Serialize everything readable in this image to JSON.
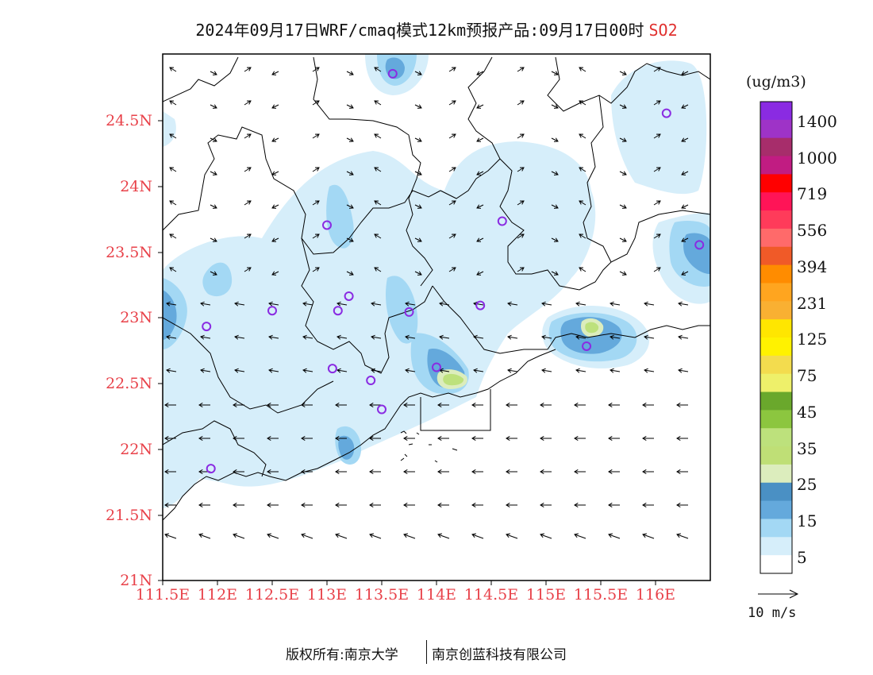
{
  "title": {
    "text": "2024年09月17日WRF/cmaq模式12km预报产品:09月17日00时",
    "pollutant": "SO2"
  },
  "map": {
    "lat_labels": [
      "24.5N",
      "24N",
      "23.5N",
      "23N",
      "22.5N",
      "22N",
      "21.5N",
      "21N"
    ],
    "lon_labels": [
      "111.5E",
      "112E",
      "112.5E",
      "113E",
      "113.5E",
      "114E",
      "114.5E",
      "115E",
      "115.5E",
      "116E"
    ],
    "lon_range": [
      111.5,
      116.5
    ],
    "lat_range": [
      21,
      25
    ],
    "stations": [
      {
        "lon": 113.6,
        "lat": 24.85
      },
      {
        "lon": 116.1,
        "lat": 24.55
      },
      {
        "lon": 113.0,
        "lat": 23.7
      },
      {
        "lon": 114.6,
        "lat": 23.73
      },
      {
        "lon": 116.4,
        "lat": 23.55
      },
      {
        "lon": 113.2,
        "lat": 23.16
      },
      {
        "lon": 112.5,
        "lat": 23.05
      },
      {
        "lon": 113.1,
        "lat": 23.05
      },
      {
        "lon": 113.75,
        "lat": 23.04
      },
      {
        "lon": 114.4,
        "lat": 23.09
      },
      {
        "lon": 111.9,
        "lat": 22.93
      },
      {
        "lon": 115.37,
        "lat": 22.78
      },
      {
        "lon": 113.05,
        "lat": 22.61
      },
      {
        "lon": 113.4,
        "lat": 22.52
      },
      {
        "lon": 114.0,
        "lat": 22.62
      },
      {
        "lon": 113.5,
        "lat": 22.3
      },
      {
        "lon": 111.94,
        "lat": 21.85
      }
    ]
  },
  "legend": {
    "unit": "(ug/m3)",
    "levels": [
      "1400",
      "1000",
      "719",
      "556",
      "394",
      "231",
      "125",
      "75",
      "45",
      "35",
      "25",
      "15",
      "5"
    ],
    "colors": [
      "#8a2be2",
      "#9e33c7",
      "#a72d6b",
      "#c11c82",
      "#ff0000",
      "#ff1457",
      "#ff3b5a",
      "#ff6a6a",
      "#f05a28",
      "#ff8c00",
      "#ffa51f",
      "#f9b032",
      "#ffe600",
      "#fff200",
      "#f3dc4e",
      "#eef06a",
      "#6aa82c",
      "#8cc63f",
      "#bde17c",
      "#bfdf76",
      "#dcedbd",
      "#4a90c4",
      "#64a9dc",
      "#a3d8f4",
      "#d6eefa",
      "#ffffff"
    ]
  },
  "reference_vector": {
    "label": "10 m/s"
  },
  "footer": {
    "owner": "版权所有:南京大学",
    "partner": "南京创蓝科技有限公司"
  }
}
